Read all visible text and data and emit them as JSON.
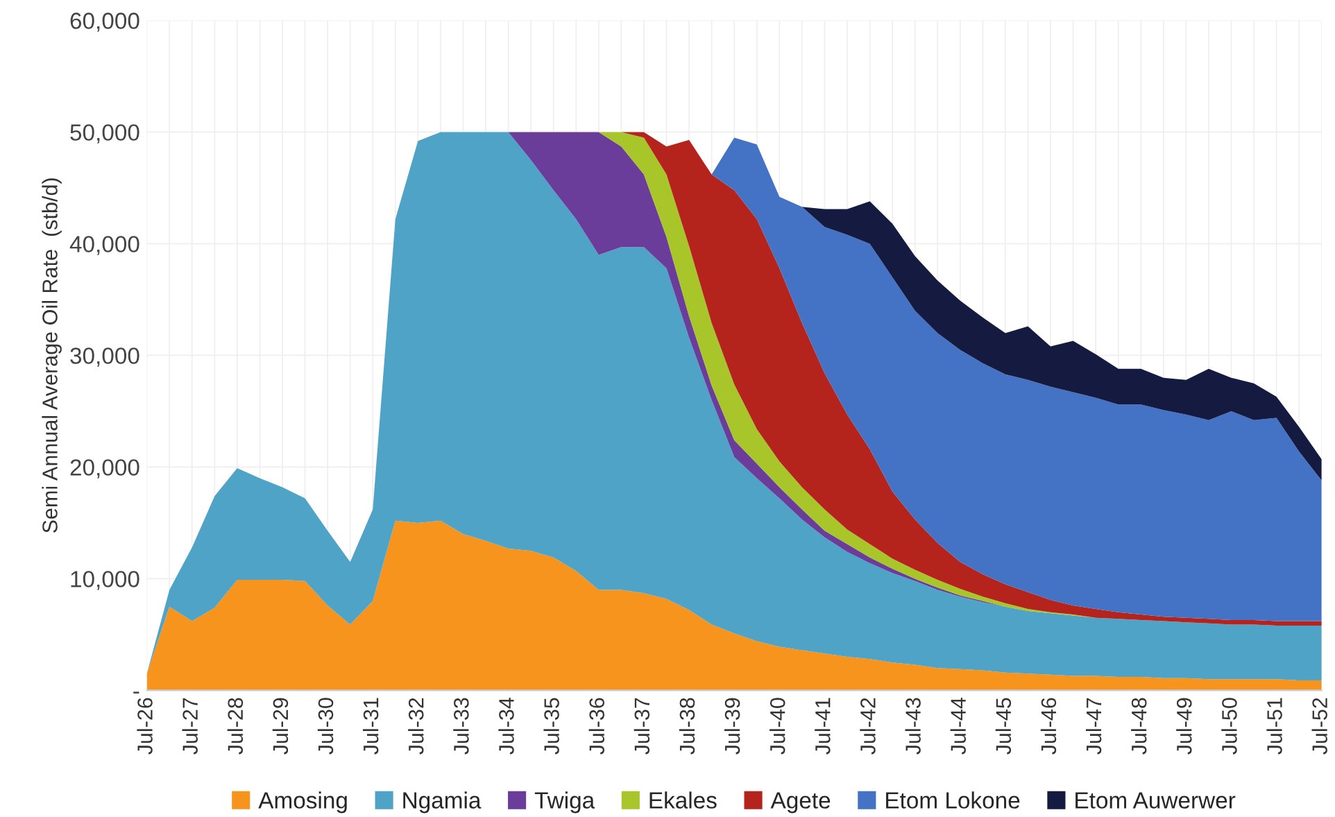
{
  "chart_data": {
    "type": "area",
    "stacked": true,
    "ylabel": "Semi Annual Average Oil Rate  (stb/d)",
    "categories": [
      "Jul-26",
      null,
      "Jul-27",
      null,
      "Jul-28",
      null,
      "Jul-29",
      null,
      "Jul-30",
      null,
      "Jul-31",
      null,
      "Jul-32",
      null,
      "Jul-33",
      null,
      "Jul-34",
      null,
      "Jul-35",
      null,
      "Jul-36",
      null,
      "Jul-37",
      null,
      "Jul-38",
      null,
      "Jul-39",
      null,
      "Jul-40",
      null,
      "Jul-41",
      null,
      "Jul-42",
      null,
      "Jul-43",
      null,
      "Jul-44",
      null,
      "Jul-45",
      null,
      "Jul-46",
      null,
      "Jul-47",
      null,
      "Jul-48",
      null,
      "Jul-49",
      null,
      "Jul-50",
      null,
      "Jul-51",
      null,
      "Jul-52"
    ],
    "ylim": [
      0,
      60000
    ],
    "yticks": [
      {
        "value": 0,
        "label": "-"
      },
      {
        "value": 10000,
        "label": "10,000"
      },
      {
        "value": 20000,
        "label": "20,000"
      },
      {
        "value": 30000,
        "label": "30,000"
      },
      {
        "value": 40000,
        "label": "40,000"
      },
      {
        "value": 50000,
        "label": "50,000"
      },
      {
        "value": 60000,
        "label": "60,000"
      }
    ],
    "grid": true,
    "legend": "bottom",
    "series": [
      {
        "name": "Amosing",
        "color": "#f7941d",
        "values": [
          1500,
          7500,
          6200,
          7400,
          9900,
          9900,
          9900,
          9800,
          7600,
          5900,
          8000,
          15200,
          15000,
          15200,
          14000,
          13400,
          12700,
          12500,
          11900,
          10700,
          9000,
          9000,
          8700,
          8200,
          7200,
          5900,
          5100,
          4400,
          3900,
          3600,
          3300,
          3000,
          2800,
          2500,
          2300,
          2000,
          1900,
          1800,
          1600,
          1500,
          1400,
          1300,
          1300,
          1200,
          1200,
          1100,
          1100,
          1000,
          1000,
          1000,
          1000,
          900,
          900
        ]
      },
      {
        "name": "Ngamia",
        "color": "#4fa3c7",
        "values": [
          0,
          1500,
          6600,
          10000,
          10000,
          9100,
          8300,
          7400,
          6700,
          5600,
          8200,
          27000,
          34200,
          34800,
          36000,
          36600,
          37300,
          35000,
          32900,
          31500,
          30000,
          30700,
          31000,
          29600,
          24400,
          20100,
          15800,
          14600,
          13300,
          11700,
          10400,
          9400,
          8600,
          8000,
          7500,
          7000,
          6500,
          6100,
          5900,
          5600,
          5500,
          5400,
          5200,
          5200,
          5100,
          5100,
          5000,
          5000,
          4900,
          4900,
          4800,
          4900,
          4900
        ]
      },
      {
        "name": "Twiga",
        "color": "#6a3d9a",
        "values": [
          null,
          null,
          null,
          null,
          null,
          null,
          null,
          null,
          null,
          null,
          null,
          null,
          null,
          null,
          null,
          null,
          0,
          2500,
          5200,
          7800,
          11000,
          9000,
          6500,
          2800,
          1900,
          1300,
          1500,
          1300,
          1000,
          900,
          600,
          700,
          500,
          400,
          200,
          200,
          100,
          100,
          0,
          null,
          null,
          null,
          null,
          null,
          null,
          null,
          null,
          null,
          null,
          null,
          null,
          null,
          null
        ]
      },
      {
        "name": "Ekales",
        "color": "#a8c62a",
        "values": [
          null,
          null,
          null,
          null,
          null,
          null,
          null,
          null,
          null,
          null,
          null,
          null,
          null,
          null,
          null,
          null,
          null,
          null,
          null,
          null,
          0,
          1300,
          3300,
          5600,
          6300,
          5600,
          5000,
          3100,
          2300,
          2000,
          1900,
          1300,
          1200,
          900,
          800,
          700,
          600,
          400,
          300,
          200,
          100,
          100,
          0,
          null,
          null,
          null,
          null,
          null,
          null,
          null,
          null,
          null,
          null
        ]
      },
      {
        "name": "Agete",
        "color": "#b5241c",
        "values": [
          null,
          null,
          null,
          null,
          null,
          null,
          null,
          null,
          null,
          null,
          null,
          null,
          null,
          null,
          null,
          null,
          null,
          null,
          null,
          null,
          null,
          0,
          500,
          2500,
          9500,
          13300,
          17400,
          18800,
          17300,
          14700,
          12200,
          10300,
          8500,
          6000,
          4500,
          3300,
          2400,
          2000,
          1700,
          1500,
          1100,
          800,
          800,
          600,
          500,
          400,
          400,
          400,
          400,
          400,
          400,
          400,
          400
        ]
      },
      {
        "name": "Etom Lokone",
        "color": "#4472c4",
        "values": [
          null,
          null,
          null,
          null,
          null,
          null,
          null,
          null,
          null,
          null,
          null,
          null,
          null,
          null,
          null,
          null,
          null,
          null,
          null,
          null,
          null,
          null,
          null,
          null,
          null,
          0,
          4700,
          6700,
          6400,
          10400,
          13100,
          16100,
          18400,
          19200,
          18700,
          18800,
          19000,
          18900,
          18800,
          19000,
          19100,
          19100,
          18900,
          18600,
          18800,
          18500,
          18200,
          17800,
          18700,
          17900,
          18200,
          15200,
          12600
        ]
      },
      {
        "name": "Etom Auwerwer",
        "color": "#151a40",
        "values": [
          null,
          null,
          null,
          null,
          null,
          null,
          null,
          null,
          null,
          null,
          null,
          null,
          null,
          null,
          null,
          null,
          null,
          null,
          null,
          null,
          null,
          null,
          null,
          null,
          null,
          null,
          null,
          null,
          null,
          0,
          1600,
          2300,
          3800,
          4800,
          4900,
          4700,
          4400,
          4100,
          3700,
          4800,
          3600,
          4600,
          3900,
          3200,
          3200,
          2900,
          3100,
          4600,
          3000,
          3300,
          1900,
          2200,
          1900
        ]
      }
    ]
  }
}
